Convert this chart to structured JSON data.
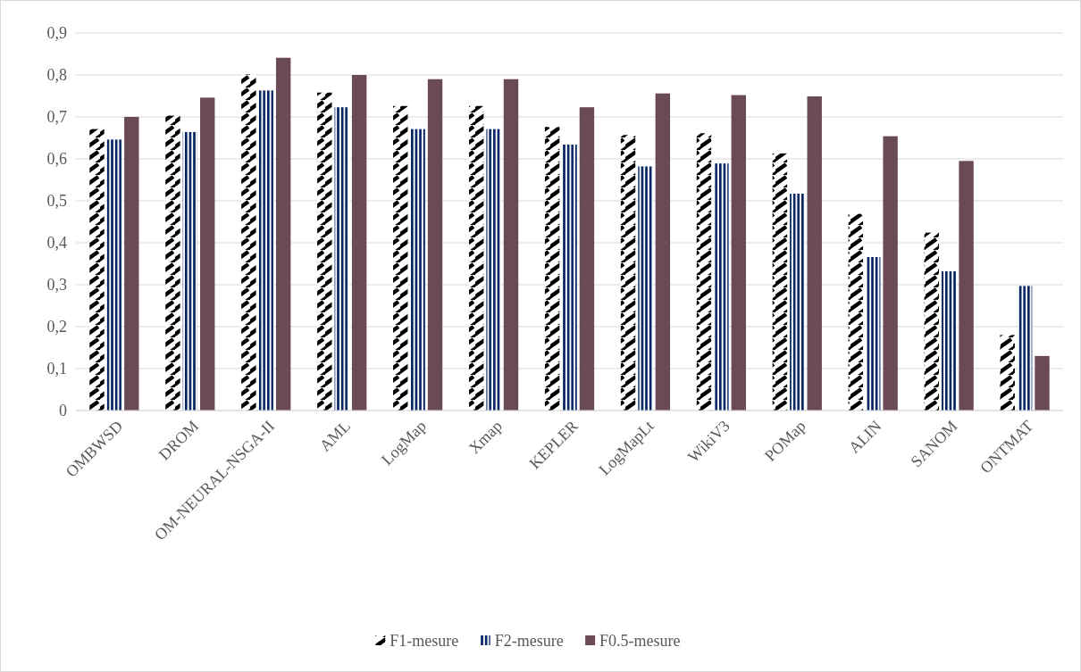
{
  "chart_data": {
    "type": "bar",
    "categories": [
      "OMBWSD",
      "DROM",
      "OM-NEURAL-NSGA-II",
      "AML",
      "LogMap",
      "Xmap",
      "KEPLER",
      "LogMapLt",
      "WikiV3",
      "POMap",
      "ALIN",
      "SANOM",
      "ONTMAT"
    ],
    "series": [
      {
        "name": "F1-mesure",
        "color": "#000000",
        "values": [
          0.671,
          0.703,
          0.801,
          0.758,
          0.726,
          0.726,
          0.676,
          0.657,
          0.661,
          0.613,
          0.469,
          0.424,
          0.18
        ]
      },
      {
        "name": "F2-mesure",
        "color": "#002060",
        "values": [
          0.646,
          0.664,
          0.763,
          0.723,
          0.671,
          0.671,
          0.634,
          0.582,
          0.589,
          0.517,
          0.366,
          0.332,
          0.297
        ]
      },
      {
        "name": "F0.5-mesure",
        "color": "#6b4a57",
        "values": [
          0.7,
          0.746,
          0.841,
          0.8,
          0.79,
          0.79,
          0.723,
          0.756,
          0.752,
          0.749,
          0.654,
          0.595,
          0.13
        ]
      }
    ],
    "ylim": [
      0,
      0.9
    ],
    "yticks": [
      {
        "value": 0,
        "label": "0"
      },
      {
        "value": 0.1,
        "label": "0,1"
      },
      {
        "value": 0.2,
        "label": "0,2"
      },
      {
        "value": 0.3,
        "label": "0,3"
      },
      {
        "value": 0.4,
        "label": "0,4"
      },
      {
        "value": 0.5,
        "label": "0,5"
      },
      {
        "value": 0.6,
        "label": "0,6"
      },
      {
        "value": 0.7,
        "label": "0,7"
      },
      {
        "value": 0.8,
        "label": "0,8"
      },
      {
        "value": 0.9,
        "label": "0,9"
      }
    ],
    "grid": "y",
    "legend": "bottom"
  }
}
